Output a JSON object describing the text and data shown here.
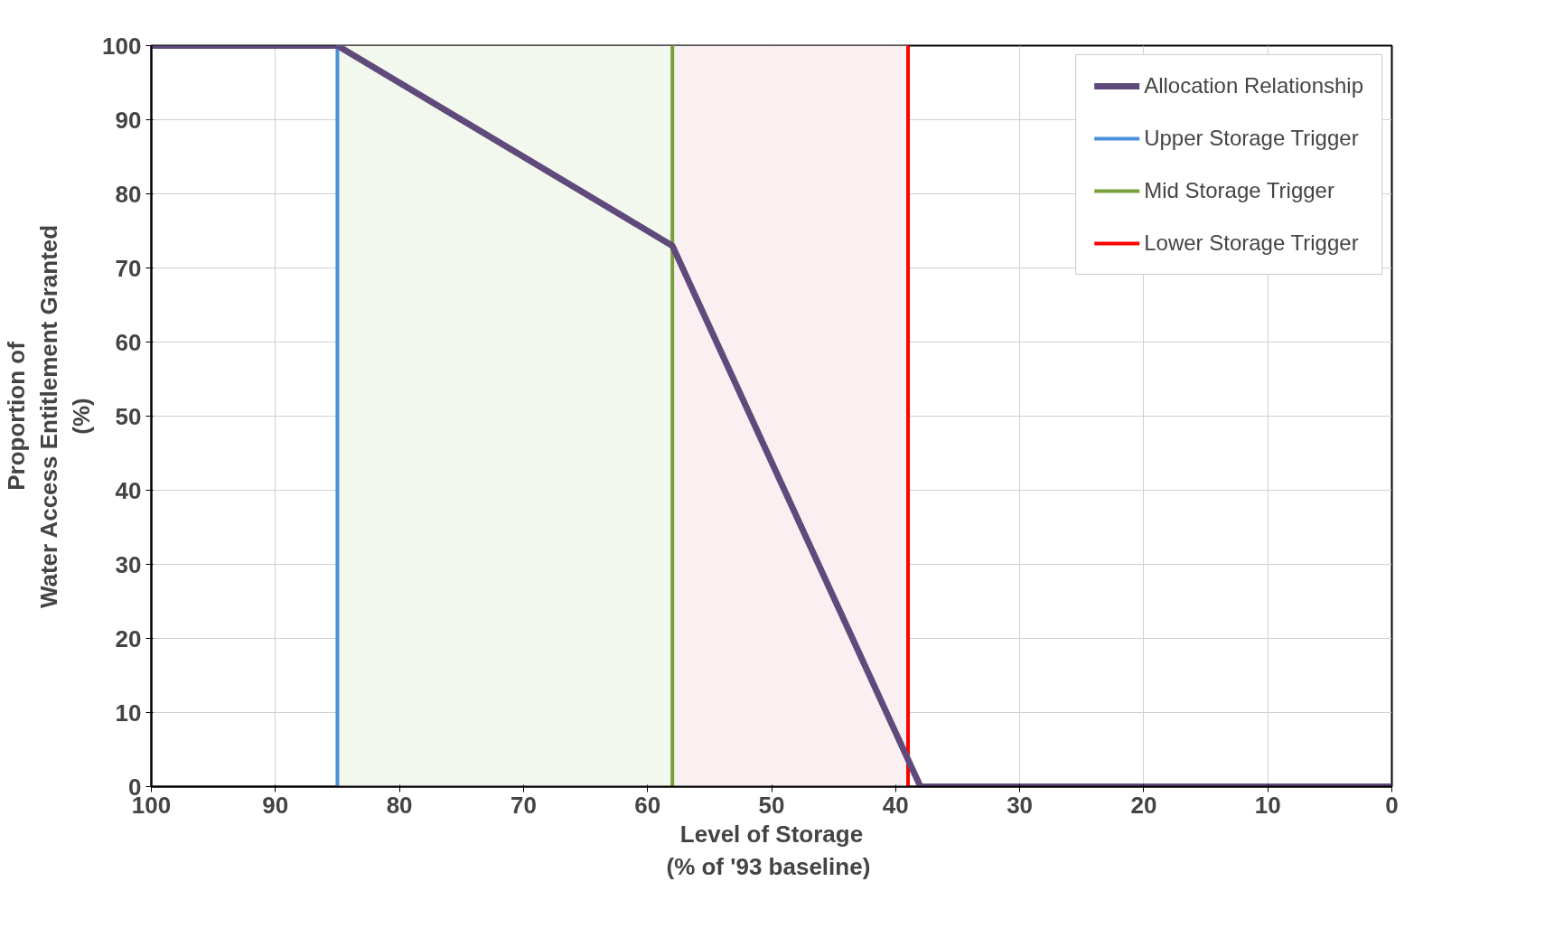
{
  "chart_data": {
    "type": "line",
    "xlabel": "Level of Storage\n(%  of '93 baseline)",
    "ylabel": "Proportion of\nWater Access Entitlement Granted\n(%)",
    "series": [
      {
        "name": "Allocation Relationship",
        "color": "#604a7b",
        "x": [
          100,
          85,
          58,
          38,
          0
        ],
        "values": [
          100,
          100,
          73,
          0,
          0
        ]
      },
      {
        "name": "Upper Storage Trigger",
        "color": "#4a90d9",
        "x": [
          85,
          85
        ],
        "values": [
          0,
          100
        ]
      },
      {
        "name": "Mid Storage Trigger",
        "color": "#77a03c",
        "x": [
          58,
          58
        ],
        "values": [
          0,
          100
        ]
      },
      {
        "name": "Lower Storage Trigger",
        "color": "#ff0000",
        "x": [
          39,
          39
        ],
        "values": [
          0,
          100
        ]
      }
    ],
    "bands": [
      {
        "axis": "x",
        "from": 85,
        "to": 58,
        "label": null,
        "color": "#f3f8ee"
      },
      {
        "axis": "x",
        "from": 58,
        "to": 39,
        "label": null,
        "color": "#fbf0f1"
      }
    ],
    "xlim": [
      100,
      0
    ],
    "ylim": [
      0,
      100
    ],
    "xticks": [
      100,
      90,
      80,
      70,
      60,
      50,
      40,
      30,
      20,
      10,
      0
    ],
    "yticks": [
      0,
      10,
      20,
      30,
      40,
      50,
      60,
      70,
      80,
      90,
      100
    ],
    "grid": true,
    "legend": "top right"
  }
}
